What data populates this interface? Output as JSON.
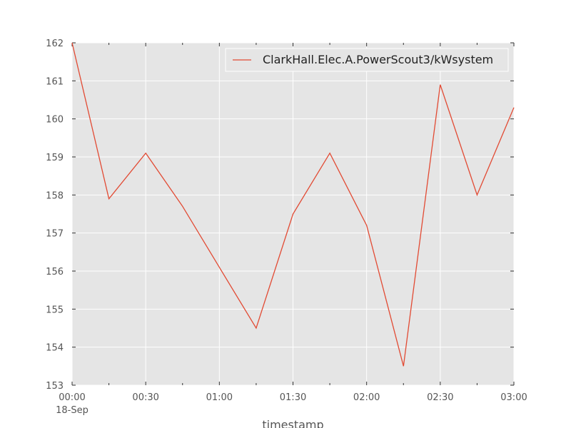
{
  "chart_data": {
    "type": "line",
    "x": [
      "00:00",
      "00:15",
      "00:30",
      "00:45",
      "01:00",
      "01:15",
      "01:30",
      "01:45",
      "02:00",
      "02:15",
      "02:30",
      "02:45",
      "03:00"
    ],
    "series": [
      {
        "name": "ClarkHall.Elec.A.PowerScout3/kWsystem",
        "values": [
          162.0,
          157.9,
          159.1,
          157.7,
          156.1,
          154.5,
          157.5,
          159.1,
          157.2,
          153.5,
          160.9,
          158.0,
          160.3
        ],
        "color": "#e24a33"
      }
    ],
    "ylim": [
      153,
      162
    ],
    "yticks": [
      "153",
      "154",
      "155",
      "156",
      "157",
      "158",
      "159",
      "160",
      "161",
      "162"
    ],
    "xticks": [
      {
        "label": "00:00",
        "index": 0
      },
      {
        "label": "00:30",
        "index": 2
      },
      {
        "label": "01:00",
        "index": 4
      },
      {
        "label": "01:30",
        "index": 6
      },
      {
        "label": "02:00",
        "index": 8
      },
      {
        "label": "02:30",
        "index": 10
      },
      {
        "label": "03:00",
        "index": 12
      }
    ],
    "x_date_label": "18-Sep",
    "xlabel": "timestamp",
    "ylabel": "",
    "grid": true,
    "legend_position": "top-right",
    "colors": {
      "plot_background": "#e5e5e5",
      "grid": "#ffffff",
      "axes_text": "#555555"
    }
  }
}
